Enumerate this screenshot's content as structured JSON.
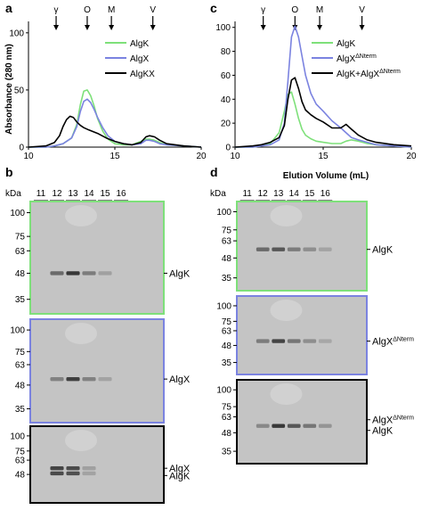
{
  "panels": {
    "a": "a",
    "b": "b",
    "c": "c",
    "d": "d"
  },
  "colors": {
    "algk": "#7ee07a",
    "algx": "#7b83e0",
    "complex": "#000000",
    "gel_bg": "#c4c4c4",
    "band": "#2a2a2a"
  },
  "chart_data": [
    {
      "type": "line",
      "panel": "a",
      "xlabel": "",
      "ylabel": "Absorbance (280 nm)",
      "xlim": [
        10,
        20
      ],
      "ylim": [
        0,
        110
      ],
      "xticks": [
        "10",
        "15",
        "20"
      ],
      "yticks": [
        "0",
        "50",
        "100"
      ],
      "markers": [
        {
          "label": "γ",
          "x": 11.6
        },
        {
          "label": "O",
          "x": 13.4
        },
        {
          "label": "M",
          "x": 14.8
        },
        {
          "label": "V",
          "x": 17.2
        }
      ],
      "series": [
        {
          "name": "AlgK",
          "color": "#7ee07a",
          "x": [
            10,
            11,
            11.5,
            12,
            12.5,
            12.8,
            13.0,
            13.2,
            13.4,
            13.6,
            13.8,
            14.0,
            14.3,
            14.6,
            15.0,
            15.5,
            16.0,
            16.5,
            16.8,
            17.0,
            17.3,
            17.6,
            18,
            19,
            20
          ],
          "y": [
            0,
            0,
            1,
            3,
            8,
            20,
            37,
            49,
            50,
            45,
            36,
            25,
            14,
            7,
            3,
            2,
            2,
            5,
            7,
            7,
            6,
            4,
            2,
            1,
            0
          ]
        },
        {
          "name": "AlgX",
          "color": "#7b83e0",
          "x": [
            10,
            11,
            11.5,
            12,
            12.5,
            12.8,
            13.0,
            13.2,
            13.4,
            13.6,
            13.8,
            14.0,
            14.3,
            14.6,
            15.0,
            15.5,
            16.0,
            16.5,
            16.8,
            17.0,
            17.3,
            17.6,
            18,
            19,
            20
          ],
          "y": [
            0,
            0,
            1,
            3,
            8,
            18,
            31,
            40,
            42,
            39,
            33,
            26,
            17,
            10,
            5,
            3,
            2,
            3,
            6,
            6,
            5,
            3,
            2,
            1,
            0
          ]
        },
        {
          "name": "AlgKX",
          "color": "#000000",
          "x": [
            10,
            11,
            11.5,
            11.8,
            12.0,
            12.2,
            12.4,
            12.6,
            12.8,
            13.0,
            13.2,
            13.5,
            14.0,
            14.5,
            15.0,
            15.5,
            16.0,
            16.5,
            16.8,
            17.0,
            17.3,
            17.6,
            18,
            19,
            20
          ],
          "y": [
            0,
            1,
            4,
            10,
            18,
            24,
            27,
            26,
            22,
            19,
            17,
            15,
            12,
            8,
            5,
            3,
            2,
            4,
            9,
            10,
            9,
            6,
            3,
            1,
            0
          ]
        }
      ]
    },
    {
      "type": "line",
      "panel": "c",
      "xlabel": "Elution Volume (mL)",
      "ylabel": "",
      "xlim": [
        10,
        20
      ],
      "ylim": [
        0,
        105
      ],
      "xticks": [
        "10",
        "15",
        "20"
      ],
      "yticks": [
        "0",
        "20",
        "40",
        "60",
        "80",
        "100"
      ],
      "markers": [
        {
          "label": "γ",
          "x": 11.6
        },
        {
          "label": "O",
          "x": 13.4
        },
        {
          "label": "M",
          "x": 14.8
        },
        {
          "label": "V",
          "x": 17.2
        }
      ],
      "series": [
        {
          "name": "AlgK",
          "color": "#7ee07a",
          "x": [
            10,
            11,
            11.5,
            12,
            12.5,
            12.8,
            13.0,
            13.2,
            13.4,
            13.6,
            13.8,
            14.0,
            14.3,
            14.6,
            15.0,
            15.5,
            16.0,
            16.3,
            16.6,
            17.0,
            17.5,
            18,
            19,
            20
          ],
          "y": [
            0,
            0,
            1,
            3,
            12,
            30,
            44,
            46,
            36,
            24,
            15,
            10,
            7,
            5,
            4,
            3,
            3,
            5,
            6,
            5,
            3,
            2,
            1,
            0
          ]
        },
        {
          "name": "AlgX",
          "sup": "ΔNterm",
          "color": "#7b83e0",
          "x": [
            10,
            11,
            11.5,
            12,
            12.5,
            12.8,
            13.0,
            13.2,
            13.4,
            13.6,
            13.8,
            14.0,
            14.3,
            14.6,
            15.0,
            15.5,
            16.0,
            16.3,
            16.6,
            17.0,
            17.5,
            18,
            19,
            20
          ],
          "y": [
            0,
            0,
            1,
            2,
            6,
            20,
            55,
            92,
            101,
            92,
            76,
            60,
            45,
            36,
            30,
            22,
            16,
            12,
            8,
            6,
            4,
            2,
            1,
            0
          ]
        },
        {
          "name": "AlgK+AlgX",
          "sup": "ΔNterm",
          "color": "#000000",
          "x": [
            10,
            11,
            11.5,
            12,
            12.5,
            12.8,
            13.0,
            13.2,
            13.4,
            13.6,
            13.8,
            14.0,
            14.3,
            14.6,
            15.0,
            15.5,
            16.0,
            16.3,
            16.6,
            17.0,
            17.5,
            18,
            19,
            20
          ],
          "y": [
            0,
            1,
            2,
            4,
            8,
            18,
            40,
            56,
            58,
            49,
            38,
            31,
            27,
            24,
            21,
            16,
            16,
            19,
            15,
            10,
            6,
            4,
            2,
            1
          ]
        }
      ]
    }
  ],
  "gels": {
    "header_kda": "kDa",
    "header_elution": "Elution Volume (mL)",
    "lanes": [
      "11",
      "12",
      "13",
      "14",
      "15",
      "16"
    ],
    "b": [
      {
        "border": "#7ee07a",
        "mw": [
          "100",
          "75",
          "63",
          "48",
          "35"
        ],
        "labels": [
          {
            "text": "AlgK",
            "mw": 48
          }
        ],
        "rows": [
          {
            "mw": 48,
            "intensity": [
              0.0,
              0.55,
              0.95,
              0.4,
              0.1,
              0.0
            ]
          }
        ]
      },
      {
        "border": "#7b83e0",
        "mw": [
          "100",
          "75",
          "63",
          "48",
          "35"
        ],
        "labels": [
          {
            "text": "AlgX",
            "mw": 52
          }
        ],
        "rows": [
          {
            "mw": 52,
            "intensity": [
              0.0,
              0.35,
              0.9,
              0.35,
              0.08,
              0.0
            ]
          }
        ]
      },
      {
        "border": "#000000",
        "mw": [
          "100",
          "75",
          "63",
          "48"
        ],
        "labels": [
          {
            "text": "AlgX",
            "mw": 54
          },
          {
            "text": "AlgK",
            "mw": 47
          }
        ],
        "rows": [
          {
            "mw": 54,
            "intensity": [
              0.0,
              0.85,
              0.8,
              0.1,
              0.0,
              0.0
            ]
          },
          {
            "mw": 49,
            "intensity": [
              0.0,
              0.8,
              0.75,
              0.08,
              0.0,
              0.0
            ]
          }
        ]
      }
    ],
    "d": [
      {
        "border": "#7ee07a",
        "mw": [
          "100",
          "75",
          "63",
          "48",
          "35"
        ],
        "labels": [
          {
            "text": "AlgK",
            "mw": 55
          }
        ],
        "rows": [
          {
            "mw": 55,
            "intensity": [
              0.0,
              0.55,
              0.7,
              0.4,
              0.25,
              0.08
            ]
          }
        ]
      },
      {
        "border": "#7b83e0",
        "mw": [
          "100",
          "75",
          "63",
          "48",
          "35"
        ],
        "labels": [
          {
            "text": "AlgX",
            "sup": "ΔNterm",
            "mw": 52
          }
        ],
        "rows": [
          {
            "mw": 52,
            "intensity": [
              0.0,
              0.4,
              0.85,
              0.45,
              0.25,
              0.05
            ]
          }
        ]
      },
      {
        "border": "#000000",
        "mw": [
          "100",
          "75",
          "63",
          "48",
          "35"
        ],
        "labels": [
          {
            "text": "AlgX",
            "sup": "ΔNterm",
            "mw": 60
          },
          {
            "text": "AlgK",
            "mw": 50
          }
        ],
        "rows": [
          {
            "mw": 54,
            "intensity": [
              0.0,
              0.3,
              0.95,
              0.7,
              0.45,
              0.2
            ]
          }
        ]
      }
    ]
  }
}
